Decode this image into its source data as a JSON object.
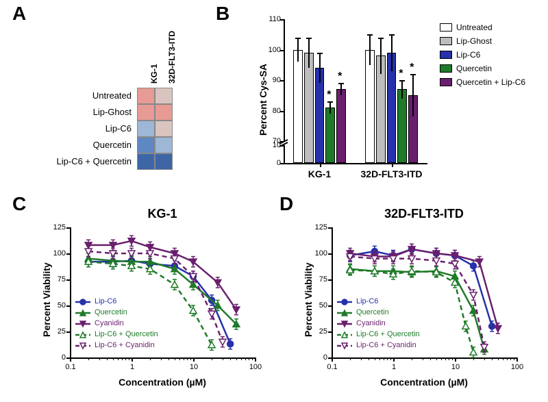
{
  "panelLabels": {
    "A": "A",
    "B": "B",
    "C": "C",
    "D": "D"
  },
  "colors": {
    "blue": "#2631aa",
    "green": "#1f7a29",
    "purple": "#6a1f6e",
    "white": "#ffffff",
    "ltgrey": "#bdbdbd",
    "black": "#000000",
    "heat_hi": "#e79b94",
    "heat_md": "#d9c4bf",
    "heat_lo": "#9fb7d6",
    "heat_lo2": "#5f87c1",
    "heat_lo3": "#3e66a7"
  },
  "heatmap": {
    "columns": [
      "KG-1",
      "32D-FLT3-ITD"
    ],
    "rows": [
      "Untreated",
      "Lip-Ghost",
      "Lip-C6",
      "Quercetin",
      "Lip-C6 + Quercetin"
    ],
    "cellColors": [
      [
        "heat_hi",
        "heat_md"
      ],
      [
        "heat_hi",
        "heat_hi"
      ],
      [
        "heat_lo",
        "heat_md"
      ],
      [
        "heat_lo2",
        "heat_lo"
      ],
      [
        "heat_lo3",
        "heat_lo3"
      ]
    ]
  },
  "barChart": {
    "ylabel": "Percent Cys-SA",
    "groups": [
      "KG-1",
      "32D-FLT3-ITD"
    ],
    "conditions": [
      "Untreated",
      "Lip-Ghost",
      "Lip-C6",
      "Quercetin",
      "Quercetin + Lip-C6"
    ],
    "condColors": [
      "white",
      "ltgrey",
      "blue",
      "green",
      "purple"
    ],
    "values": {
      "KG-1": [
        100,
        99,
        94,
        81,
        87
      ],
      "32D-FLT3-ITD": [
        100,
        98,
        99,
        87,
        85
      ]
    },
    "errors": {
      "KG-1": [
        4,
        5,
        5,
        2,
        2
      ],
      "32D-FLT3-ITD": [
        5,
        6,
        6,
        3,
        7
      ]
    },
    "stars": {
      "KG-1": [
        false,
        false,
        false,
        true,
        true
      ],
      "32D-FLT3-ITD": [
        false,
        false,
        false,
        true,
        true
      ]
    },
    "ylim": [
      0,
      110
    ],
    "break": [
      10,
      70
    ],
    "yticks_upper": [
      70,
      80,
      90,
      100,
      110
    ],
    "yticks_lower": [
      0,
      10
    ]
  },
  "legendBar": [
    {
      "label": "Untreated",
      "colorKey": "white"
    },
    {
      "label": "Lip-Ghost",
      "colorKey": "ltgrey"
    },
    {
      "label": "Lip-C6",
      "colorKey": "blue"
    },
    {
      "label": "Quercetin",
      "colorKey": "green"
    },
    {
      "label": "Quercetin + Lip-C6",
      "colorKey": "purple"
    }
  ],
  "doseLegend": [
    {
      "label": "Lip-C6",
      "colorKey": "blue",
      "marker": "circle",
      "fill": true,
      "dash": false
    },
    {
      "label": "Quercetin",
      "colorKey": "green",
      "marker": "uptriangle",
      "fill": true,
      "dash": false
    },
    {
      "label": "Cyanidin",
      "colorKey": "purple",
      "marker": "downtriangle",
      "fill": true,
      "dash": false
    },
    {
      "label": "Lip-C6 + Quercetin",
      "colorKey": "green",
      "marker": "uptriangle",
      "fill": false,
      "dash": true
    },
    {
      "label": "Lip-C6 + Cyanidin",
      "colorKey": "purple",
      "marker": "downtriangle",
      "fill": false,
      "dash": true
    }
  ],
  "doseAxis": {
    "xlabel": "Concentration (µM)",
    "ylabel": "Percent Viability",
    "xticks": [
      0.1,
      1,
      10,
      100
    ],
    "yticks": [
      0,
      25,
      50,
      75,
      100,
      125
    ]
  },
  "dose_KG1": {
    "title": "KG-1",
    "series": {
      "Lip-C6": {
        "x": [
          0.2,
          0.5,
          1,
          2,
          5,
          10,
          20,
          40
        ],
        "y": [
          92,
          92,
          93,
          90,
          88,
          78,
          55,
          13
        ]
      },
      "Quercetin": {
        "x": [
          0.2,
          0.5,
          1,
          2,
          5,
          10,
          25,
          50
        ],
        "y": [
          95,
          93,
          92,
          92,
          85,
          70,
          50,
          32
        ]
      },
      "Cyanidin": {
        "x": [
          0.2,
          0.5,
          1,
          2,
          5,
          10,
          25,
          50
        ],
        "y": [
          108,
          108,
          112,
          106,
          100,
          92,
          72,
          46
        ]
      },
      "Lip-C6 + Quercetin": {
        "x": [
          0.2,
          0.5,
          1,
          2,
          5,
          10,
          20
        ],
        "y": [
          92,
          90,
          88,
          85,
          70,
          45,
          12
        ]
      },
      "Lip-C6 + Cyanidin": {
        "x": [
          0.2,
          0.5,
          1,
          2,
          5,
          10,
          20,
          30
        ],
        "y": [
          102,
          100,
          100,
          100,
          95,
          78,
          42,
          15
        ]
      }
    }
  },
  "dose_32D": {
    "title": "32D-FLT3-ITD",
    "series": {
      "Lip-C6": {
        "x": [
          0.2,
          0.5,
          1,
          2,
          5,
          10,
          20,
          40
        ],
        "y": [
          98,
          102,
          98,
          104,
          100,
          98,
          88,
          30
        ]
      },
      "Quercetin": {
        "x": [
          0.2,
          0.5,
          1,
          2,
          5,
          10,
          20,
          30
        ],
        "y": [
          85,
          83,
          83,
          82,
          83,
          78,
          45,
          8
        ]
      },
      "Cyanidin": {
        "x": [
          0.2,
          0.5,
          1,
          2,
          5,
          10,
          25,
          50
        ],
        "y": [
          100,
          97,
          97,
          104,
          100,
          98,
          92,
          28
        ]
      },
      "Lip-C6 + Quercetin": {
        "x": [
          0.2,
          0.5,
          1,
          2,
          5,
          10,
          15,
          20
        ],
        "y": [
          84,
          83,
          80,
          83,
          82,
          72,
          30,
          5
        ]
      },
      "Lip-C6 + Cyanidin": {
        "x": [
          0.2,
          0.5,
          1,
          2,
          5,
          10,
          20,
          30
        ],
        "y": [
          97,
          95,
          95,
          95,
          93,
          90,
          60,
          10
        ]
      }
    }
  }
}
